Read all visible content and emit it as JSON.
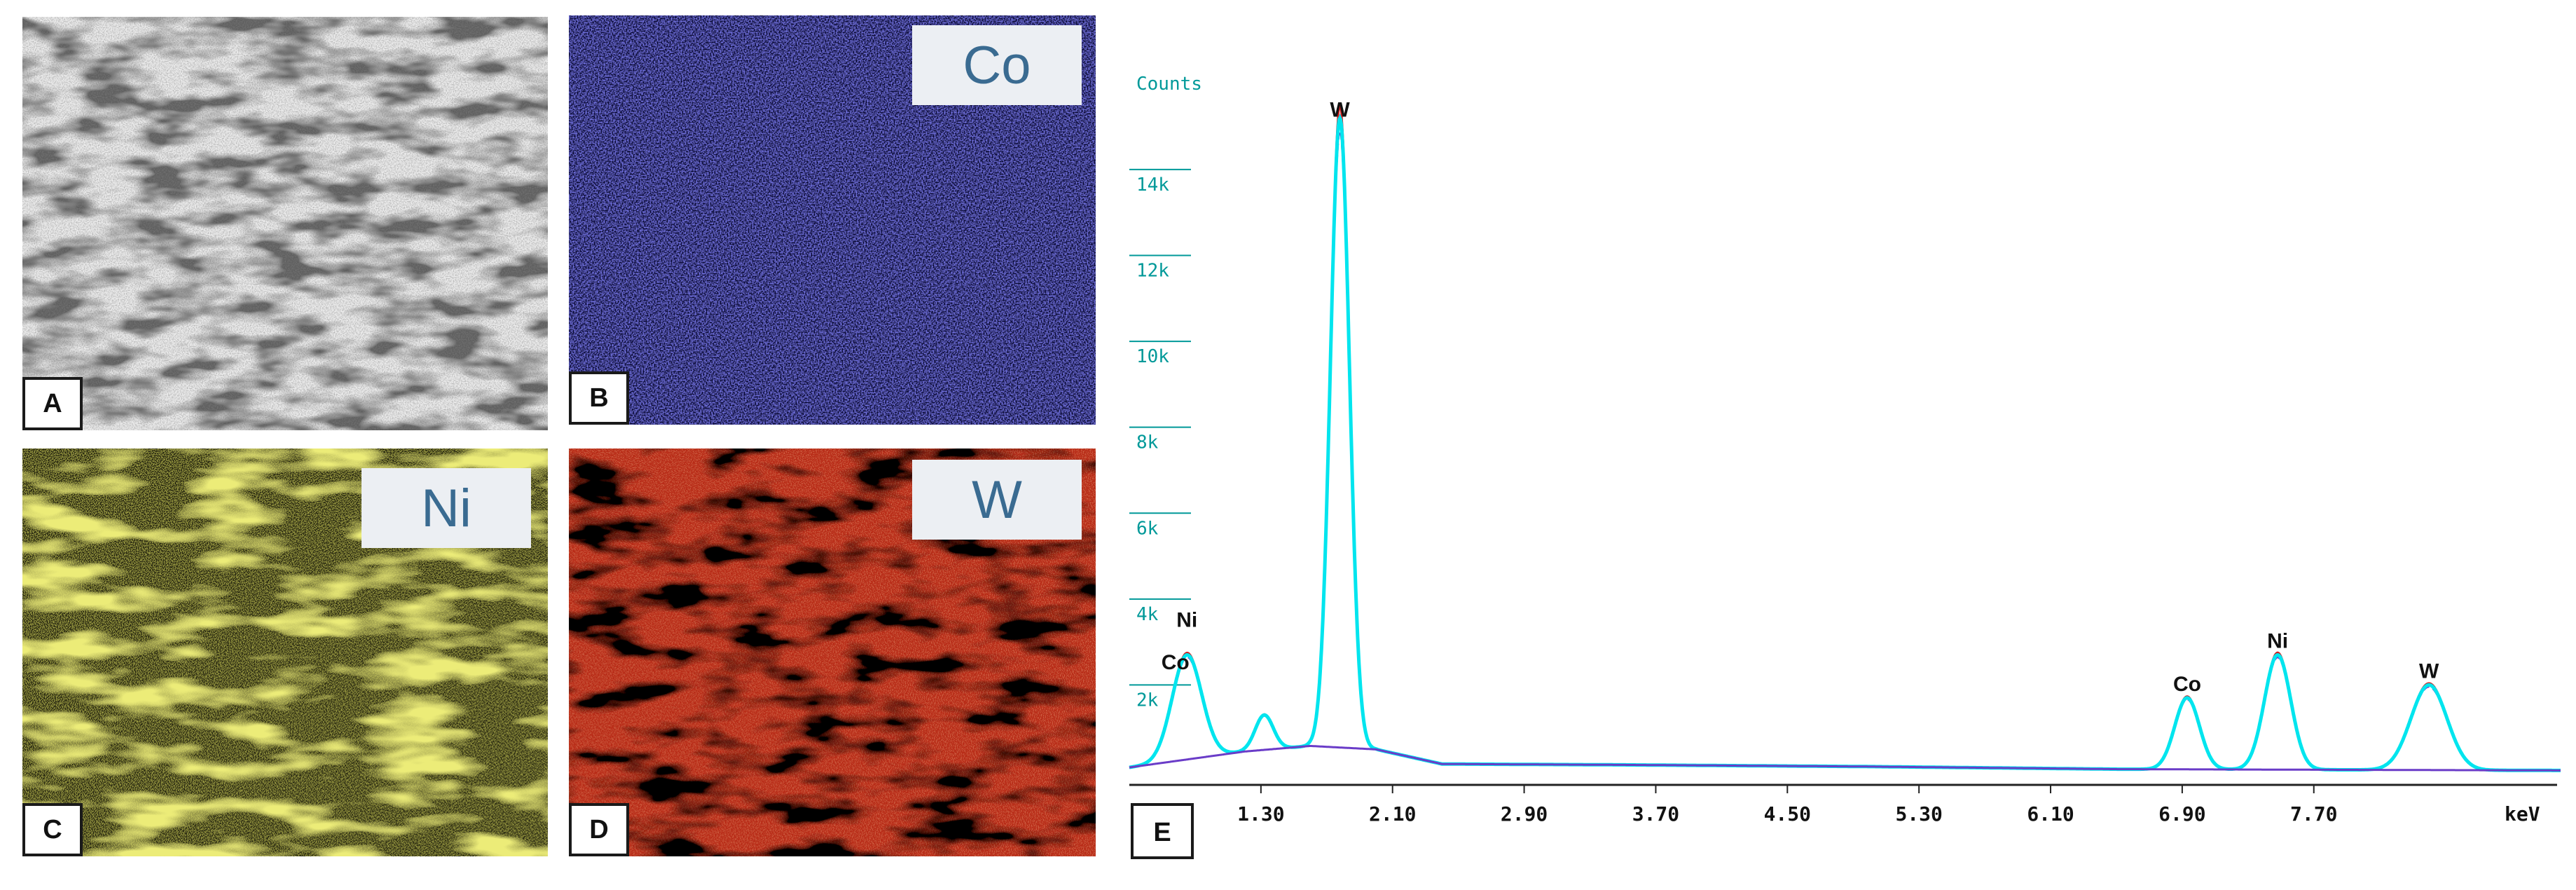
{
  "panels": {
    "a": {
      "letter": "A"
    },
    "b": {
      "letter": "B",
      "element": "Co"
    },
    "c": {
      "letter": "C",
      "element": "Ni"
    },
    "d": {
      "letter": "D",
      "element": "W"
    },
    "e": {
      "letter": "E"
    }
  },
  "colors": {
    "sem_light": "#e8e8e8",
    "sem_dark": "#5a5a5a",
    "co_map_bg": "#0d0d3a",
    "co_map_dot": "#3030d0",
    "ni_map_bg": "#1c1e08",
    "ni_map_dot": "#d6d631",
    "w_map_bg": "#b82a12",
    "w_map_dark": "#000000",
    "axis": "#009999",
    "spectrum_cyan": "#00e5ee",
    "spectrum_purple": "#6a3cc8",
    "spectrum_red": "#d02020"
  },
  "chart_data": {
    "type": "line",
    "title": "",
    "ylabel": "Counts",
    "xlabel": "keV",
    "xlim": [
      0.5,
      9.2
    ],
    "ylim": [
      0,
      15500
    ],
    "ytick_labels": [
      "2k",
      "4k",
      "6k",
      "8k",
      "10k",
      "12k",
      "14k"
    ],
    "ytick_values": [
      2000,
      4000,
      6000,
      8000,
      10000,
      12000,
      14000
    ],
    "xtick_labels": [
      "1.30",
      "2.10",
      "2.90",
      "3.70",
      "4.50",
      "5.30",
      "6.10",
      "6.90",
      "7.70"
    ],
    "xtick_values": [
      1.3,
      2.1,
      2.9,
      3.7,
      4.5,
      5.3,
      6.1,
      6.9,
      7.7
    ],
    "peaks": [
      {
        "label": "Ni",
        "x": 0.85,
        "y": 2700
      },
      {
        "label": "Co",
        "x": 0.78,
        "y": 2200
      },
      {
        "label": "",
        "x": 1.32,
        "y": 1300
      },
      {
        "label": "W",
        "x": 1.78,
        "y": 15200
      },
      {
        "label": "Co",
        "x": 6.93,
        "y": 1700
      },
      {
        "label": "Ni",
        "x": 7.48,
        "y": 2700
      },
      {
        "label": "W",
        "x": 8.4,
        "y": 2000
      }
    ],
    "background": [
      [
        0.5,
        80
      ],
      [
        1.2,
        450
      ],
      [
        1.6,
        580
      ],
      [
        2.0,
        500
      ],
      [
        2.4,
        160
      ],
      [
        3.5,
        140
      ],
      [
        5.0,
        100
      ],
      [
        6.5,
        40
      ],
      [
        9.2,
        10
      ]
    ],
    "grid": false,
    "legend": "none"
  }
}
